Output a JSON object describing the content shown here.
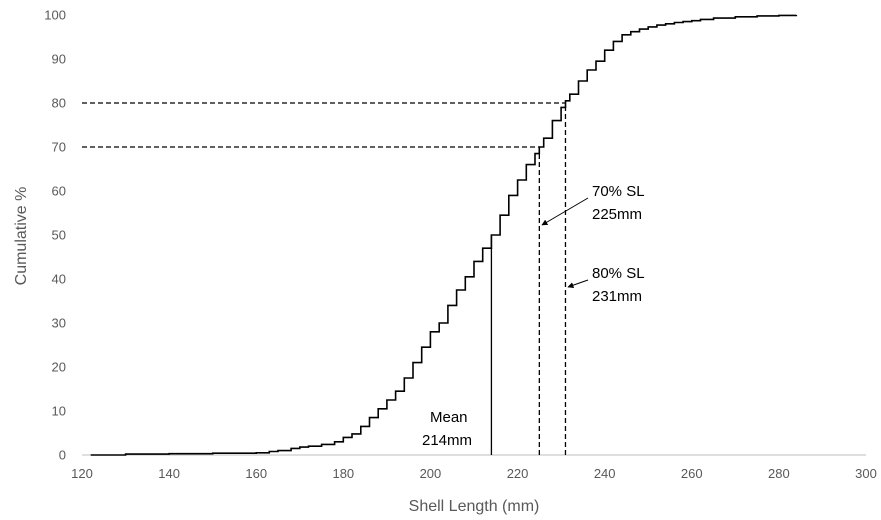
{
  "chart_data": {
    "type": "line",
    "title": "",
    "xlabel": "Shell Length (mm)",
    "ylabel": "Cumulative %",
    "xlim": [
      120,
      300
    ],
    "ylim": [
      0,
      100
    ],
    "x_ticks": [
      120,
      140,
      160,
      180,
      200,
      220,
      240,
      260,
      280,
      300
    ],
    "y_ticks": [
      0,
      10,
      20,
      30,
      40,
      50,
      60,
      70,
      80,
      90,
      100
    ],
    "grid": false,
    "legend": "none",
    "series": [
      {
        "x": [
          122,
          130,
          140,
          150,
          160,
          163,
          165,
          168,
          170,
          172,
          175,
          178,
          180,
          182,
          184,
          186,
          188,
          190,
          192,
          194,
          196,
          198,
          200,
          202,
          204,
          206,
          208,
          210,
          212,
          214,
          216,
          218,
          220,
          222,
          224,
          225,
          226,
          228,
          230,
          231,
          232,
          234,
          236,
          238,
          240,
          242,
          244,
          246,
          248,
          250,
          252,
          254,
          256,
          258,
          260,
          262,
          265,
          270,
          275,
          280,
          284
        ],
        "y": [
          0,
          0.2,
          0.3,
          0.4,
          0.5,
          0.8,
          1.0,
          1.5,
          1.8,
          2.0,
          2.4,
          3.0,
          4.0,
          4.8,
          6.5,
          8.5,
          10.5,
          12.5,
          14.5,
          17.5,
          21.0,
          24.5,
          28.0,
          30.0,
          34.0,
          37.5,
          40.5,
          44.0,
          47.0,
          50.0,
          54.5,
          59.0,
          62.5,
          66.0,
          68.5,
          70.0,
          72.0,
          76.0,
          79.0,
          80.5,
          82.0,
          85.0,
          87.5,
          89.5,
          92.0,
          94.0,
          95.5,
          96.2,
          96.8,
          97.3,
          97.7,
          98.0,
          98.3,
          98.5,
          98.7,
          99.0,
          99.3,
          99.6,
          99.8,
          99.9,
          100
        ]
      }
    ],
    "reference_lines": [
      {
        "type": "horizontal",
        "y": 80,
        "x_end": 231,
        "style": "dashed"
      },
      {
        "type": "horizontal",
        "y": 70,
        "x_end": 225,
        "style": "dashed"
      },
      {
        "type": "vertical",
        "x": 225,
        "y_end": 70,
        "style": "dashed"
      },
      {
        "type": "vertical",
        "x": 231,
        "y_end": 80,
        "style": "dashed"
      },
      {
        "type": "vertical",
        "x": 214,
        "y_end": 50,
        "style": "solid"
      }
    ],
    "annotations": [
      {
        "lines": [
          "70% SL",
          "225mm"
        ],
        "arrow_to": [
          225,
          52
        ]
      },
      {
        "lines": [
          "80% SL",
          "231mm"
        ],
        "arrow_to": [
          231,
          38
        ]
      },
      {
        "lines": [
          "Mean",
          "214mm"
        ]
      }
    ]
  }
}
